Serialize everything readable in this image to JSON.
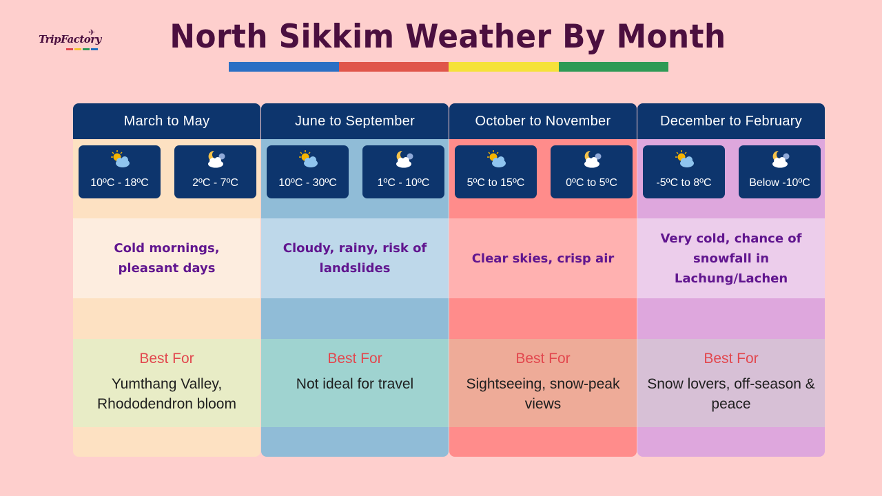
{
  "logo": {
    "text": "TripFactory",
    "bar_colors": [
      "#e2474e",
      "#f4c430",
      "#2e9a5a",
      "#1e6fc0"
    ]
  },
  "title": "North Sikkim Weather By Month",
  "title_bar_colors": [
    "#2a6fc4",
    "#e0554a",
    "#f5e23a",
    "#2e9a55"
  ],
  "colors": {
    "header_bg": "#0d356d",
    "condition_text": "#61168f",
    "best_for_label": "#e2474e"
  },
  "seasons": [
    {
      "name": "March to May",
      "day_icon": "sun-cloud-icon",
      "night_icon": "moon-cloud-icon",
      "day_temp": "10ºC - 18ºC",
      "night_temp": "2ºC - 7ºC",
      "condition": "Cold mornings, pleasant days",
      "best_for_label": "Best For",
      "best_for": "Yumthang Valley, Rhododendron bloom",
      "colors": {
        "base": "#fde1c2",
        "cond": "#fdeddf",
        "best": "#e8ecc6"
      }
    },
    {
      "name": "June to September",
      "day_icon": "sun-cloud-icon",
      "night_icon": "moon-cloud-icon",
      "day_temp": "10ºC - 30ºC",
      "night_temp": "1ºC - 10ºC",
      "condition": "Cloudy, rainy, risk of landslides",
      "best_for_label": "Best For",
      "best_for": "Not ideal for travel",
      "colors": {
        "base": "#90bcd7",
        "cond": "#bed8ea",
        "best": "#9fd3d0"
      }
    },
    {
      "name": "October to November",
      "day_icon": "sun-cloud-icon",
      "night_icon": "moon-cloud-icon",
      "day_temp": "5ºC to 15ºC",
      "night_temp": "0ºC to 5ºC",
      "condition": "Clear skies, crisp air",
      "best_for_label": "Best For",
      "best_for": "Sightseeing, snow-peak views",
      "colors": {
        "base": "#ff8c8b",
        "cond": "#ffb1b0",
        "best": "#eeab98"
      }
    },
    {
      "name": "December to February",
      "day_icon": "sun-cloud-icon",
      "night_icon": "moon-cloud-icon",
      "day_temp": "-5ºC to 8ºC",
      "night_temp": "Below -10ºC",
      "condition": "Very cold, chance of snowfall in Lachung/Lachen",
      "best_for_label": "Best For",
      "best_for": "Snow lovers, off-season & peace",
      "colors": {
        "base": "#dea7dd",
        "cond": "#eccdeb",
        "best": "#d7c0d6"
      }
    }
  ]
}
